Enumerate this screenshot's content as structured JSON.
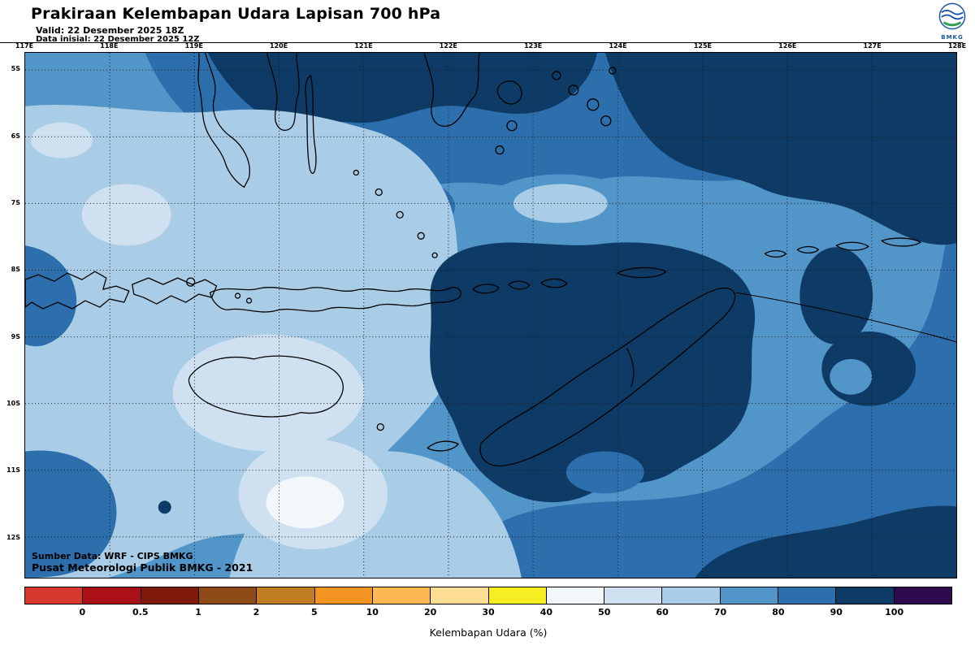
{
  "header": {
    "title": "Prakiraan Kelembapan Udara Lapisan 700 hPa",
    "valid": "Valid: 22 Desember 2025 18Z",
    "init": "Data inisial: 22 Desember 2025 12Z",
    "logo_label": "BMKG"
  },
  "map": {
    "lon_labels": [
      "117E",
      "118E",
      "119E",
      "120E",
      "121E",
      "122E",
      "123E",
      "124E",
      "125E",
      "126E",
      "127E",
      "128E"
    ],
    "lat_labels": [
      "5S",
      "6S",
      "7S",
      "8S",
      "9S",
      "10S",
      "11S",
      "12S"
    ],
    "source_line1": "Sumber Data: WRF - CIPS BMKG",
    "source_line2": "Pusat Meteorologi Publik BMKG - 2021"
  },
  "legend": {
    "caption": "Kelembapan Udara (%)",
    "ticks": [
      "0",
      "0.5",
      "1",
      "2",
      "5",
      "10",
      "20",
      "30",
      "40",
      "50",
      "60",
      "70",
      "80",
      "90",
      "100"
    ],
    "colors": [
      "#d7382d",
      "#aa1016",
      "#801a0d",
      "#8d4a16",
      "#c07d22",
      "#f29322",
      "#fbb853",
      "#fcdd93",
      "#f6ed22",
      "#f2f7fa",
      "#cfe1f0",
      "#a9cde6",
      "#5295c9",
      "#2d6fad",
      "#0e3a66",
      "#2e0b4f"
    ]
  }
}
